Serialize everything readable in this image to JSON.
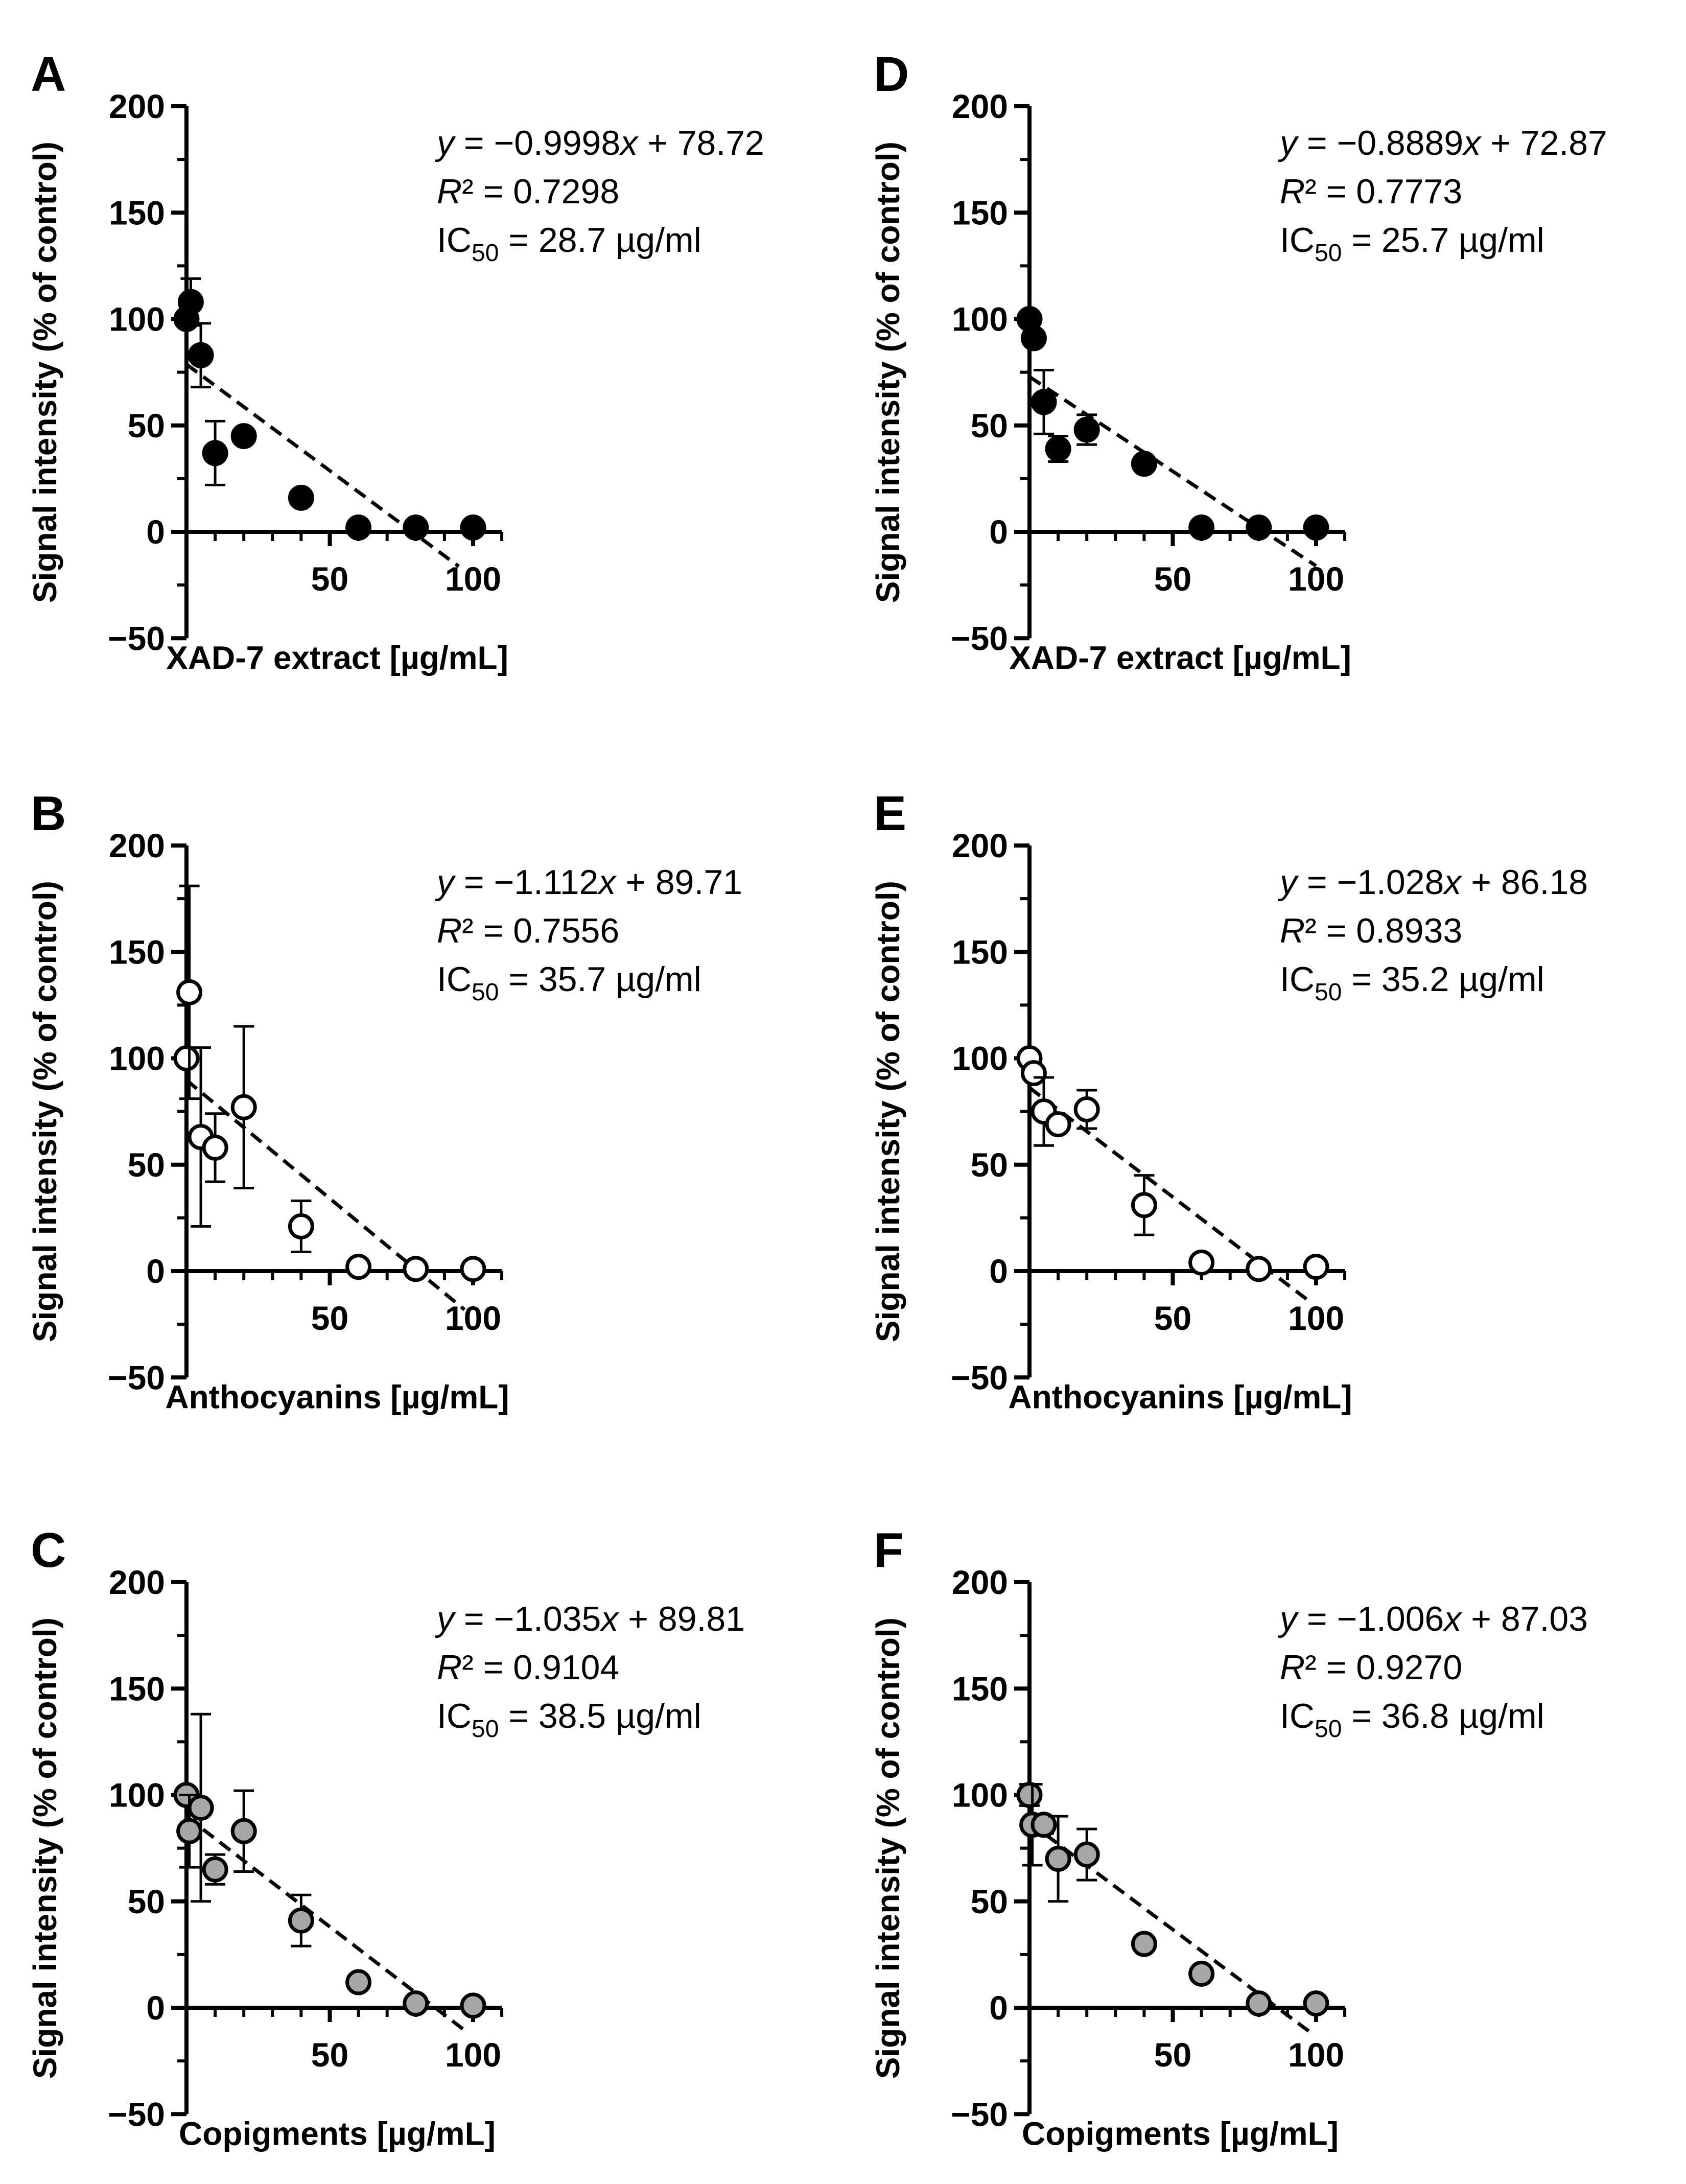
{
  "chart_data": [
    {
      "panel": "A",
      "type": "scatter",
      "xlabel": "XAD-7 extract [µg/mL]",
      "ylabel": "Signal intensity (% of control)",
      "xlim": [
        0,
        110
      ],
      "ylim": [
        -50,
        200
      ],
      "xticks": [
        "50",
        "100"
      ],
      "yticks": [
        "200",
        "150",
        "100",
        "50",
        "0",
        "−50"
      ],
      "marker": "filled",
      "points": [
        {
          "x": 0,
          "y": 100,
          "err": 0
        },
        {
          "x": 1.5,
          "y": 108,
          "err": 11
        },
        {
          "x": 5,
          "y": 83,
          "err": 15
        },
        {
          "x": 10,
          "y": 37,
          "err": 15
        },
        {
          "x": 20,
          "y": 45,
          "err": 0
        },
        {
          "x": 40,
          "y": 16,
          "err": 0
        },
        {
          "x": 60,
          "y": 2,
          "err": 0
        },
        {
          "x": 80,
          "y": 2,
          "err": 0
        },
        {
          "x": 100,
          "y": 2,
          "err": 0
        }
      ],
      "fit": {
        "slope": -0.9998,
        "intercept": 78.72,
        "x_end": 95
      },
      "equation": {
        "y": "y",
        "eq_text": " = −0.9998",
        "x": "x",
        "tail": " + 78.72",
        "r2_label": "R",
        "r2_text": "² = 0.7298",
        "ic_label": "IC",
        "ic_sub": "50",
        "ic_text": " = 28.7 µg/ml"
      }
    },
    {
      "panel": "B",
      "type": "scatter",
      "xlabel": "Anthocyanins [µg/mL]",
      "ylabel": "Signal intensity (% of control)",
      "xlim": [
        0,
        110
      ],
      "ylim": [
        -50,
        200
      ],
      "xticks": [
        "50",
        "100"
      ],
      "yticks": [
        "200",
        "150",
        "100",
        "50",
        "0",
        "−50"
      ],
      "marker": "open",
      "points": [
        {
          "x": 0,
          "y": 100,
          "err": 0
        },
        {
          "x": 1,
          "y": 131,
          "err": 50
        },
        {
          "x": 5,
          "y": 63,
          "err": 42
        },
        {
          "x": 10,
          "y": 58,
          "err": 16
        },
        {
          "x": 20,
          "y": 77,
          "err": 38
        },
        {
          "x": 40,
          "y": 21,
          "err": 12
        },
        {
          "x": 60,
          "y": 2,
          "err": 0
        },
        {
          "x": 80,
          "y": 1,
          "err": 0
        },
        {
          "x": 100,
          "y": 1,
          "err": 0
        }
      ],
      "fit": {
        "slope": -1.112,
        "intercept": 89.71,
        "x_end": 97
      },
      "equation": {
        "y": "y",
        "eq_text": " = −1.112",
        "x": "x",
        "tail": " + 89.71",
        "r2_label": "R",
        "r2_text": "² = 0.7556",
        "ic_label": "IC",
        "ic_sub": "50",
        "ic_text": " = 35.7 µg/ml"
      }
    },
    {
      "panel": "C",
      "type": "scatter",
      "xlabel": "Copigments [µg/mL]",
      "ylabel": "Signal intensity (% of control)",
      "xlim": [
        0,
        110
      ],
      "ylim": [
        -50,
        200
      ],
      "xticks": [
        "50",
        "100"
      ],
      "yticks": [
        "200",
        "150",
        "100",
        "50",
        "0",
        "−50"
      ],
      "marker": "gray",
      "points": [
        {
          "x": 0,
          "y": 100,
          "err": 0
        },
        {
          "x": 1,
          "y": 83,
          "err": 17
        },
        {
          "x": 5,
          "y": 94,
          "err": 44
        },
        {
          "x": 10,
          "y": 65,
          "err": 7
        },
        {
          "x": 20,
          "y": 83,
          "err": 19
        },
        {
          "x": 40,
          "y": 41,
          "err": 12
        },
        {
          "x": 60,
          "y": 12,
          "err": 0
        },
        {
          "x": 80,
          "y": 2,
          "err": 0
        },
        {
          "x": 100,
          "y": 1,
          "err": 0
        }
      ],
      "fit": {
        "slope": -1.035,
        "intercept": 89.81,
        "x_end": 98
      },
      "equation": {
        "y": "y",
        "eq_text": " = −1.035",
        "x": "x",
        "tail": " + 89.81",
        "r2_label": "R",
        "r2_text": "² = 0.9104",
        "ic_label": "IC",
        "ic_sub": "50",
        "ic_text": " = 38.5 µg/ml"
      }
    },
    {
      "panel": "D",
      "type": "scatter",
      "xlabel": "XAD-7 extract [µg/mL]",
      "ylabel": "Signal intensity (% of control)",
      "xlim": [
        0,
        110
      ],
      "ylim": [
        -50,
        200
      ],
      "xticks": [
        "50",
        "100"
      ],
      "yticks": [
        "200",
        "150",
        "100",
        "50",
        "0",
        "−50"
      ],
      "marker": "filled",
      "points": [
        {
          "x": 0,
          "y": 100,
          "err": 0
        },
        {
          "x": 1.5,
          "y": 91,
          "err": 0
        },
        {
          "x": 5,
          "y": 61,
          "err": 15
        },
        {
          "x": 10,
          "y": 39,
          "err": 6
        },
        {
          "x": 20,
          "y": 48,
          "err": 7
        },
        {
          "x": 40,
          "y": 32,
          "err": 0
        },
        {
          "x": 60,
          "y": 2,
          "err": 0
        },
        {
          "x": 80,
          "y": 2,
          "err": 0
        },
        {
          "x": 100,
          "y": 2,
          "err": 0
        }
      ],
      "fit": {
        "slope": -0.8889,
        "intercept": 72.87,
        "x_end": 100
      },
      "equation": {
        "y": "y",
        "eq_text": " = −0.8889",
        "x": "x",
        "tail": " + 72.87",
        "r2_label": "R",
        "r2_text": "² = 0.7773",
        "ic_label": "IC",
        "ic_sub": "50",
        "ic_text": " = 25.7 µg/ml"
      }
    },
    {
      "panel": "E",
      "type": "scatter",
      "xlabel": "Anthocyanins [µg/mL]",
      "ylabel": "Signal intensity (% of control)",
      "xlim": [
        0,
        110
      ],
      "ylim": [
        -50,
        200
      ],
      "xticks": [
        "50",
        "100"
      ],
      "yticks": [
        "200",
        "150",
        "100",
        "50",
        "0",
        "−50"
      ],
      "marker": "open",
      "points": [
        {
          "x": 0,
          "y": 100,
          "err": 0
        },
        {
          "x": 1.5,
          "y": 93,
          "err": 0
        },
        {
          "x": 5,
          "y": 75,
          "err": 16
        },
        {
          "x": 10,
          "y": 69,
          "err": 0
        },
        {
          "x": 20,
          "y": 76,
          "err": 9
        },
        {
          "x": 40,
          "y": 31,
          "err": 14
        },
        {
          "x": 60,
          "y": 4,
          "err": 0
        },
        {
          "x": 80,
          "y": 1,
          "err": 0
        },
        {
          "x": 100,
          "y": 2,
          "err": 0
        }
      ],
      "fit": {
        "slope": -1.028,
        "intercept": 86.18,
        "x_end": 98
      },
      "equation": {
        "y": "y",
        "eq_text": " = −1.028",
        "x": "x",
        "tail": " + 86.18",
        "r2_label": "R",
        "r2_text": "² = 0.8933",
        "ic_label": "IC",
        "ic_sub": "50",
        "ic_text": " = 35.2 µg/ml"
      }
    },
    {
      "panel": "F",
      "type": "scatter",
      "xlabel": "Copigments [µg/mL]",
      "ylabel": "Signal intensity (% of control)",
      "xlim": [
        0,
        110
      ],
      "ylim": [
        -50,
        200
      ],
      "xticks": [
        "50",
        "100"
      ],
      "yticks": [
        "200",
        "150",
        "100",
        "50",
        "0",
        "−50"
      ],
      "marker": "gray",
      "points": [
        {
          "x": 0,
          "y": 100,
          "err": 5
        },
        {
          "x": 1,
          "y": 86,
          "err": 19
        },
        {
          "x": 5,
          "y": 86,
          "err": 4
        },
        {
          "x": 10,
          "y": 70,
          "err": 20
        },
        {
          "x": 20,
          "y": 72,
          "err": 12
        },
        {
          "x": 40,
          "y": 30,
          "err": 0
        },
        {
          "x": 60,
          "y": 16,
          "err": 0
        },
        {
          "x": 80,
          "y": 2,
          "err": 0
        },
        {
          "x": 100,
          "y": 2,
          "err": 0
        }
      ],
      "fit": {
        "slope": -1.006,
        "intercept": 87.03,
        "x_end": 98
      },
      "equation": {
        "y": "y",
        "eq_text": " = −1.006",
        "x": "x",
        "tail": " + 87.03",
        "r2_label": "R",
        "r2_text": "² = 0.9270",
        "ic_label": "IC",
        "ic_sub": "50",
        "ic_text": " = 36.8 µg/ml"
      }
    }
  ],
  "colors": {
    "ink": "#000000",
    "filled_marker": "#000000",
    "open_marker": "#ffffff",
    "gray_marker": "#a6a6a6"
  }
}
